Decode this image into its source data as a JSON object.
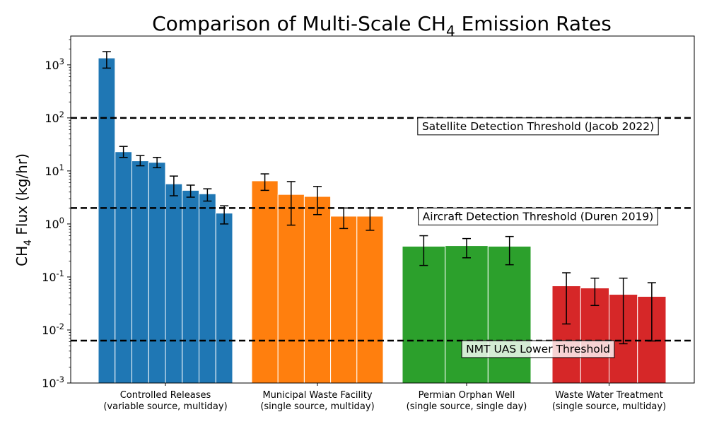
{
  "chart_data": {
    "type": "bar",
    "title_main": "Comparison of Multi-Scale CH",
    "title_sub": "4",
    "title_rest": " Emission Rates",
    "ylabel_main": "CH",
    "ylabel_sub": "4",
    "ylabel_rest": " Flux (kg/hr)",
    "yscale": "log",
    "ylim": [
      0.001,
      3500
    ],
    "yticks": [
      {
        "value": 0.001,
        "exp": "-3"
      },
      {
        "value": 0.01,
        "exp": "-2"
      },
      {
        "value": 0.1,
        "exp": "-1"
      },
      {
        "value": 1,
        "exp": "0"
      },
      {
        "value": 10,
        "exp": "1"
      },
      {
        "value": 100,
        "exp": "2"
      },
      {
        "value": 1000,
        "exp": "3"
      }
    ],
    "tick_base": "10",
    "grid": false,
    "groups": [
      {
        "line1": "Controlled Releases",
        "line2": "(variable source, multiday)",
        "color": "#1f77b4",
        "values": [
          1350,
          23,
          15.5,
          14.5,
          5.7,
          4.3,
          3.7,
          1.6
        ],
        "err_low": [
          870,
          18,
          12.5,
          11.5,
          3.4,
          3.2,
          2.7,
          1.0
        ],
        "err_high": [
          1780,
          29,
          19.5,
          18.0,
          8.0,
          5.4,
          4.6,
          2.2
        ]
      },
      {
        "line1": "Municipal Waste Facility",
        "line2": "(single source, multiday)",
        "color": "#ff7f0e",
        "values": [
          6.5,
          3.6,
          3.3,
          1.4,
          1.4
        ],
        "err_low": [
          4.3,
          0.95,
          1.5,
          0.82,
          0.76
        ],
        "err_high": [
          8.8,
          6.3,
          5.1,
          2.0,
          2.0
        ]
      },
      {
        "line1": "Permian Orphan Well",
        "line2": "(single source, single day)",
        "color": "#2ca02c",
        "values": [
          0.38,
          0.39,
          0.38
        ],
        "err_low": [
          0.165,
          0.23,
          0.17
        ],
        "err_high": [
          0.6,
          0.53,
          0.58
        ]
      },
      {
        "line1": "Waste Water Treatment",
        "line2": "(single source, multiday)",
        "color": "#d62728",
        "values": [
          0.068,
          0.062,
          0.047,
          0.043
        ],
        "err_low": [
          0.013,
          0.029,
          0.0055,
          0.0062
        ],
        "err_high": [
          0.12,
          0.095,
          0.095,
          0.078
        ]
      }
    ],
    "thresholds": [
      {
        "value": 100,
        "label": "Satellite Detection Threshold (Jacob 2022)",
        "label_style": "boxed"
      },
      {
        "value": 2,
        "label": "Aircraft Detection Threshold (Duren 2019)",
        "label_style": "boxed"
      },
      {
        "value": 0.0063,
        "label": "NMT UAS Lower Threshold",
        "label_style": "boxed-pink"
      }
    ]
  }
}
